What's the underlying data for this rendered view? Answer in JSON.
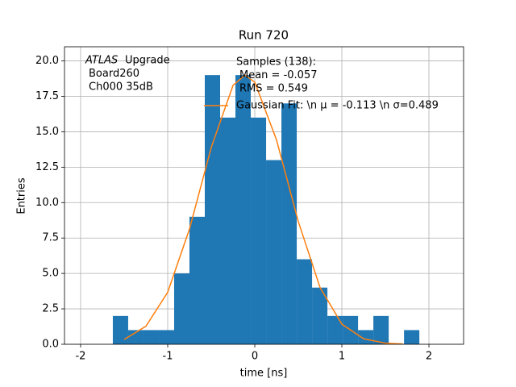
{
  "chart_data": {
    "type": "histogram",
    "title": "Run 720",
    "xlabel": "time [ns]",
    "ylabel": "Entries",
    "annotation": {
      "emphasis": "ATLAS",
      "lines": [
        "Upgrade",
        "Board260",
        "Ch000 35dB"
      ]
    },
    "stats": [
      "Samples (138):",
      "Mean = -0.057",
      "RMS = 0.549"
    ],
    "bins": [
      -1.63,
      -1.454,
      -1.278,
      -1.102,
      -0.926,
      -0.75,
      -0.574,
      -0.398,
      -0.222,
      -0.046,
      0.13,
      0.306,
      0.482,
      0.658,
      0.834,
      1.01,
      1.186,
      1.362,
      1.538,
      1.714,
      1.89
    ],
    "counts": [
      2,
      1,
      1,
      1,
      5,
      9,
      19,
      16,
      19,
      16,
      13,
      17,
      6,
      4,
      2,
      2,
      1,
      2,
      0,
      1
    ],
    "color": "#1f77b4",
    "fit": {
      "name": "Gaussian Fit: \\n μ = -0.113 \\n σ=0.489",
      "color": "#ff7f0e",
      "x": [
        -1.5,
        -1.25,
        -1.0,
        -0.75,
        -0.5,
        -0.25,
        -0.113,
        0,
        0.25,
        0.5,
        0.75,
        1.0,
        1.25,
        1.5,
        1.7
      ],
      "values": [
        0.34,
        1.27,
        3.67,
        8.13,
        13.89,
        18.27,
        19,
        18.5,
        14.42,
        8.66,
        4.0,
        1.42,
        0.39,
        0.08,
        0.02
      ]
    },
    "xlim": [
      -2.185,
      2.398
    ],
    "ylim": [
      0,
      21
    ],
    "xticks": [
      -2,
      -1,
      0,
      1,
      2
    ],
    "yticks": [
      {
        "value": 0,
        "label": "0.0"
      },
      {
        "value": 2.5,
        "label": "2.5"
      },
      {
        "value": 5,
        "label": "5.0"
      },
      {
        "value": 7.5,
        "label": "7.5"
      },
      {
        "value": 10,
        "label": "10.0"
      },
      {
        "value": 12.5,
        "label": "12.5"
      },
      {
        "value": 15,
        "label": "15.0"
      },
      {
        "value": 17.5,
        "label": "17.5"
      },
      {
        "value": 20,
        "label": "20.0"
      }
    ],
    "grid": true
  }
}
